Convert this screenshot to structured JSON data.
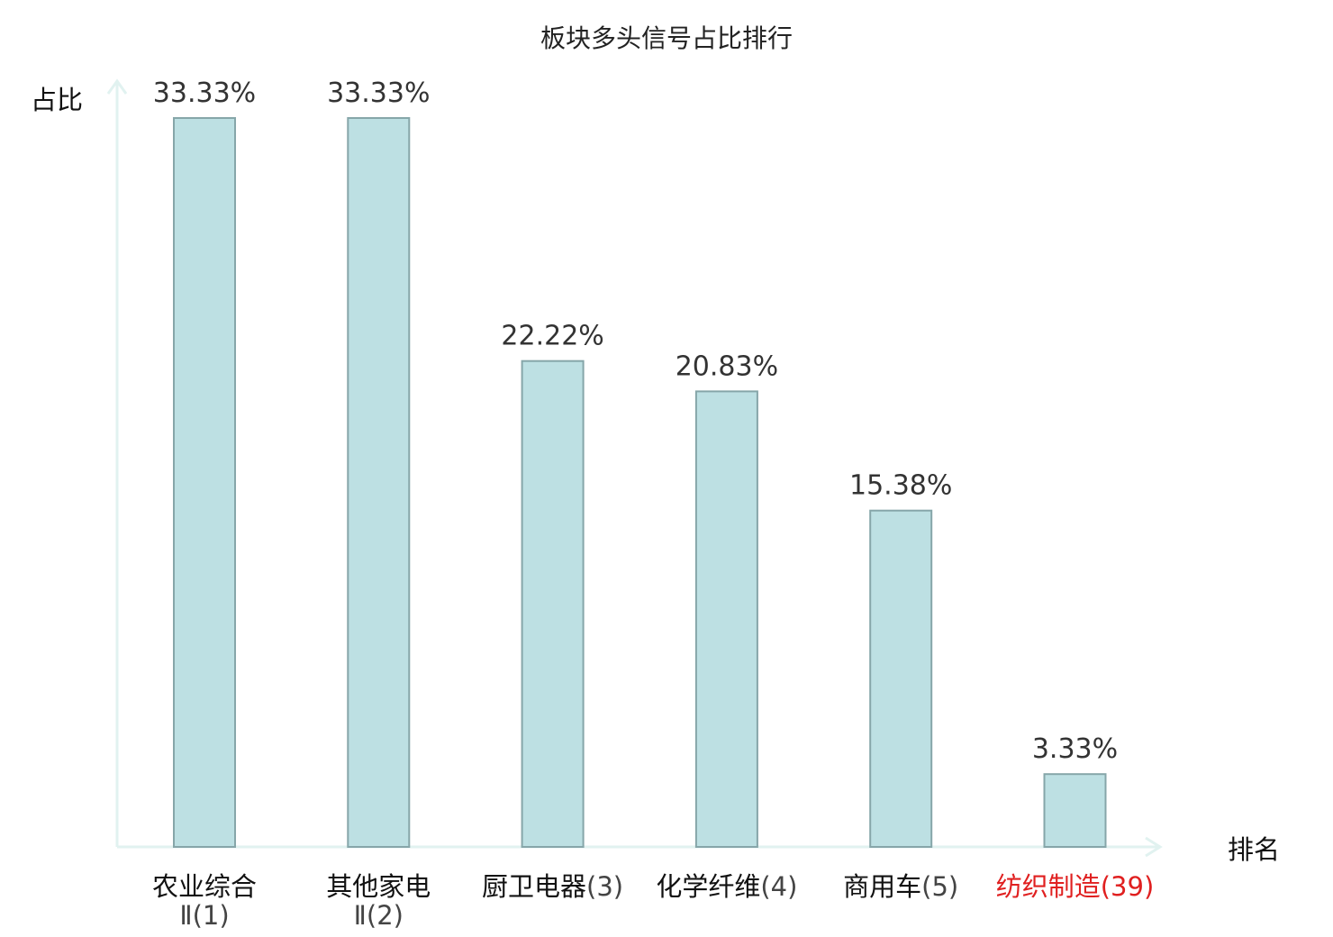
{
  "chart_data": {
    "type": "bar",
    "title": "板块多头信号占比排行",
    "ylabel": "占比",
    "xlabel": "排名",
    "ylim": [
      0,
      35
    ],
    "grid": false,
    "legend": "none",
    "categories": [
      {
        "line1": "农业综合",
        "line2": "Ⅱ(1)",
        "highlight": false
      },
      {
        "line1": "其他家电",
        "line2": "Ⅱ(2)",
        "highlight": false
      },
      {
        "line1": "厨卫电器",
        "suffix": "(3)",
        "highlight": false
      },
      {
        "line1": "化学纤维",
        "suffix": "(4)",
        "highlight": false
      },
      {
        "line1": "商用车",
        "suffix": "(5)",
        "highlight": false
      },
      {
        "line1": "纺织制造",
        "suffix": "(39)",
        "highlight": true
      }
    ],
    "values": [
      33.33,
      33.33,
      22.22,
      20.83,
      15.38,
      3.33
    ],
    "value_labels": [
      "33.33%",
      "33.33%",
      "22.22%",
      "20.83%",
      "15.38%",
      "3.33%"
    ],
    "colors": {
      "bar_fill": "#bde0e3",
      "bar_stroke": "#86a6a9",
      "axis": "#e1f2f0",
      "highlight": "#e02020"
    }
  }
}
